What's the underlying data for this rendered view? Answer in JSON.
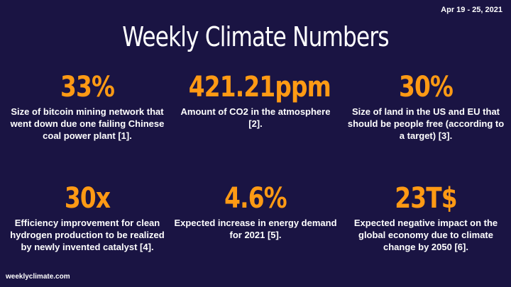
{
  "header": {
    "date_range": "Apr 19 - 25, 2021",
    "title": "Weekly Climate Numbers"
  },
  "stats": [
    {
      "value": "33%",
      "description": "Size of bitcoin mining network that went down due one failing Chinese coal power plant [1]."
    },
    {
      "value": "421.21ppm",
      "description": "Amount of CO2 in the atmosphere [2]."
    },
    {
      "value": "30%",
      "description": "Size of land in the US and EU that should be people free (according to a target) [3]."
    },
    {
      "value": "30x",
      "description": "Efficiency improvement for clean hydrogen production to be realized by newly invented catalyst [4]."
    },
    {
      "value": "4.6%",
      "description": "Expected increase in energy demand for 2021 [5]."
    },
    {
      "value": "23T$",
      "description": "Expected negative impact on the global economy due to climate change by 2050 [6]."
    }
  ],
  "footer": {
    "site": "weeklyclimate.com"
  },
  "colors": {
    "background": "#1a1443",
    "accent": "#ff9a14",
    "text": "#ffffff"
  }
}
